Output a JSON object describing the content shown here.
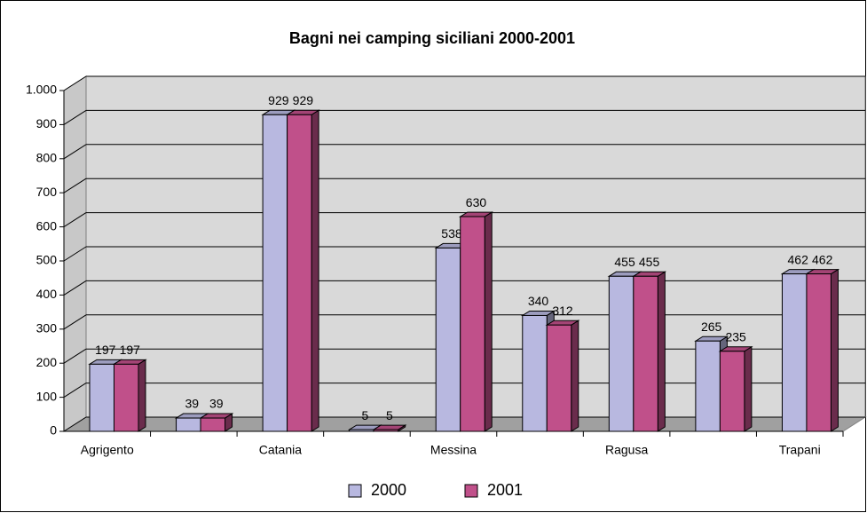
{
  "chart_data": {
    "type": "bar3d",
    "title": "Bagni nei camping siciliani 2000-2001",
    "categories": [
      "Agrigento",
      null,
      "Catania",
      null,
      "Messina",
      null,
      "Ragusa",
      null,
      "Trapani"
    ],
    "series": [
      {
        "name": "2000",
        "color": "#b8b8e0",
        "values": [
          197,
          39,
          929,
          5,
          538,
          340,
          455,
          265,
          462
        ]
      },
      {
        "name": "2001",
        "color": "#c0508a",
        "values": [
          197,
          39,
          929,
          5,
          630,
          312,
          455,
          235,
          462
        ]
      }
    ],
    "ylim": [
      0,
      1000
    ],
    "yticks": [
      0,
      100,
      200,
      300,
      400,
      500,
      600,
      700,
      800,
      900,
      {
        "value": 1000,
        "label": "1.000"
      }
    ],
    "grid": true,
    "legend": "bottom"
  }
}
